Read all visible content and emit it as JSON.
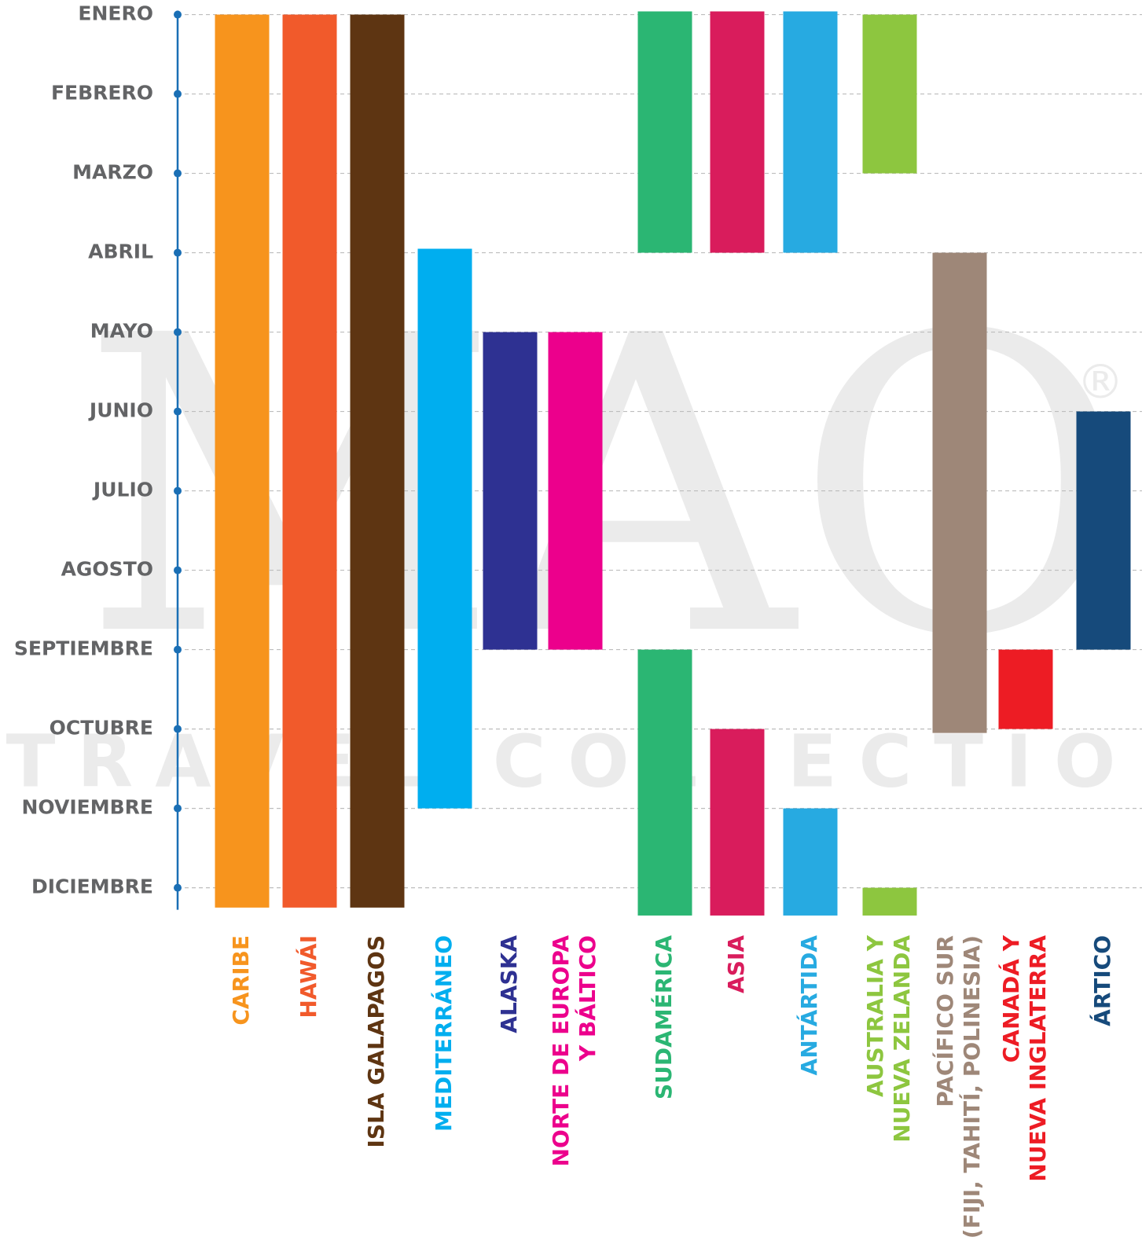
{
  "chart_data": {
    "type": "range",
    "watermark": {
      "logo": "MAO",
      "mark": "®",
      "tagline": "TRAVEL COLLECTION"
    },
    "ylim": [
      0.95,
      12.4
    ],
    "y_inverted": true,
    "grid": true,
    "axis_color": "#1a6fb5",
    "yticks": [
      {
        "value": 1,
        "label": "ENERO"
      },
      {
        "value": 2,
        "label": "FEBRERO"
      },
      {
        "value": 3,
        "label": "MARZO"
      },
      {
        "value": 4,
        "label": "ABRIL"
      },
      {
        "value": 5,
        "label": "MAYO"
      },
      {
        "value": 6,
        "label": "JUNIO"
      },
      {
        "value": 7,
        "label": "JULIO"
      },
      {
        "value": 8,
        "label": "AGOSTO"
      },
      {
        "value": 9,
        "label": "SEPTIEMBRE"
      },
      {
        "value": 10,
        "label": "OCTUBRE"
      },
      {
        "value": 11,
        "label": "NOVIEMBRE"
      },
      {
        "value": 12,
        "label": "DICIEMBRE"
      }
    ],
    "series": [
      {
        "name": "CARIBE",
        "color": "#f7941d",
        "ranges": [
          [
            1,
            12.25
          ]
        ]
      },
      {
        "name": "HAWÁI",
        "color": "#f15a2b",
        "ranges": [
          [
            1,
            12.25
          ]
        ]
      },
      {
        "name": "ISLA GALAPAGOS",
        "color": "#5e3512",
        "ranges": [
          [
            1,
            12.25
          ]
        ]
      },
      {
        "name": "MEDITERRÁNEO",
        "color": "#00aeef",
        "ranges": [
          [
            3.95,
            11
          ]
        ]
      },
      {
        "name": "ALASKA",
        "color": "#2e3192",
        "ranges": [
          [
            5,
            9
          ]
        ]
      },
      {
        "name": [
          "NORTE DE EUROPA",
          "Y BÁLTICO"
        ],
        "color": "#ec008c",
        "ranges": [
          [
            5,
            9
          ]
        ]
      },
      {
        "name": "SUDAMÉRICA",
        "color": "#2bb673",
        "ranges": [
          [
            0.96,
            4
          ],
          [
            9,
            12.35
          ]
        ]
      },
      {
        "name": "ASIA",
        "color": "#d91c5c",
        "ranges": [
          [
            0.96,
            4
          ],
          [
            10,
            12.35
          ]
        ]
      },
      {
        "name": "ANTÁRTIDA",
        "color": "#27aae1",
        "ranges": [
          [
            0.96,
            4
          ],
          [
            11,
            12.35
          ]
        ]
      },
      {
        "name": [
          "AUSTRALIA Y",
          "NUEVA ZELANDA"
        ],
        "color": "#8dc63f",
        "ranges": [
          [
            1,
            3
          ],
          [
            12,
            12.35
          ]
        ]
      },
      {
        "name": [
          "PACÍFICO SUR",
          "(FIJI, TAHITÍ, POLINESIA)"
        ],
        "color": "#9e8778",
        "ranges": [
          [
            4,
            10.05
          ]
        ]
      },
      {
        "name": [
          "CANADÁ Y",
          "NUEVA INGLATERRA"
        ],
        "color": "#ed1c24",
        "ranges": [
          [
            9,
            10
          ]
        ]
      },
      {
        "name": "ÁRTICO",
        "color": "#164a7b",
        "ranges": [
          [
            6,
            9
          ]
        ]
      }
    ]
  }
}
